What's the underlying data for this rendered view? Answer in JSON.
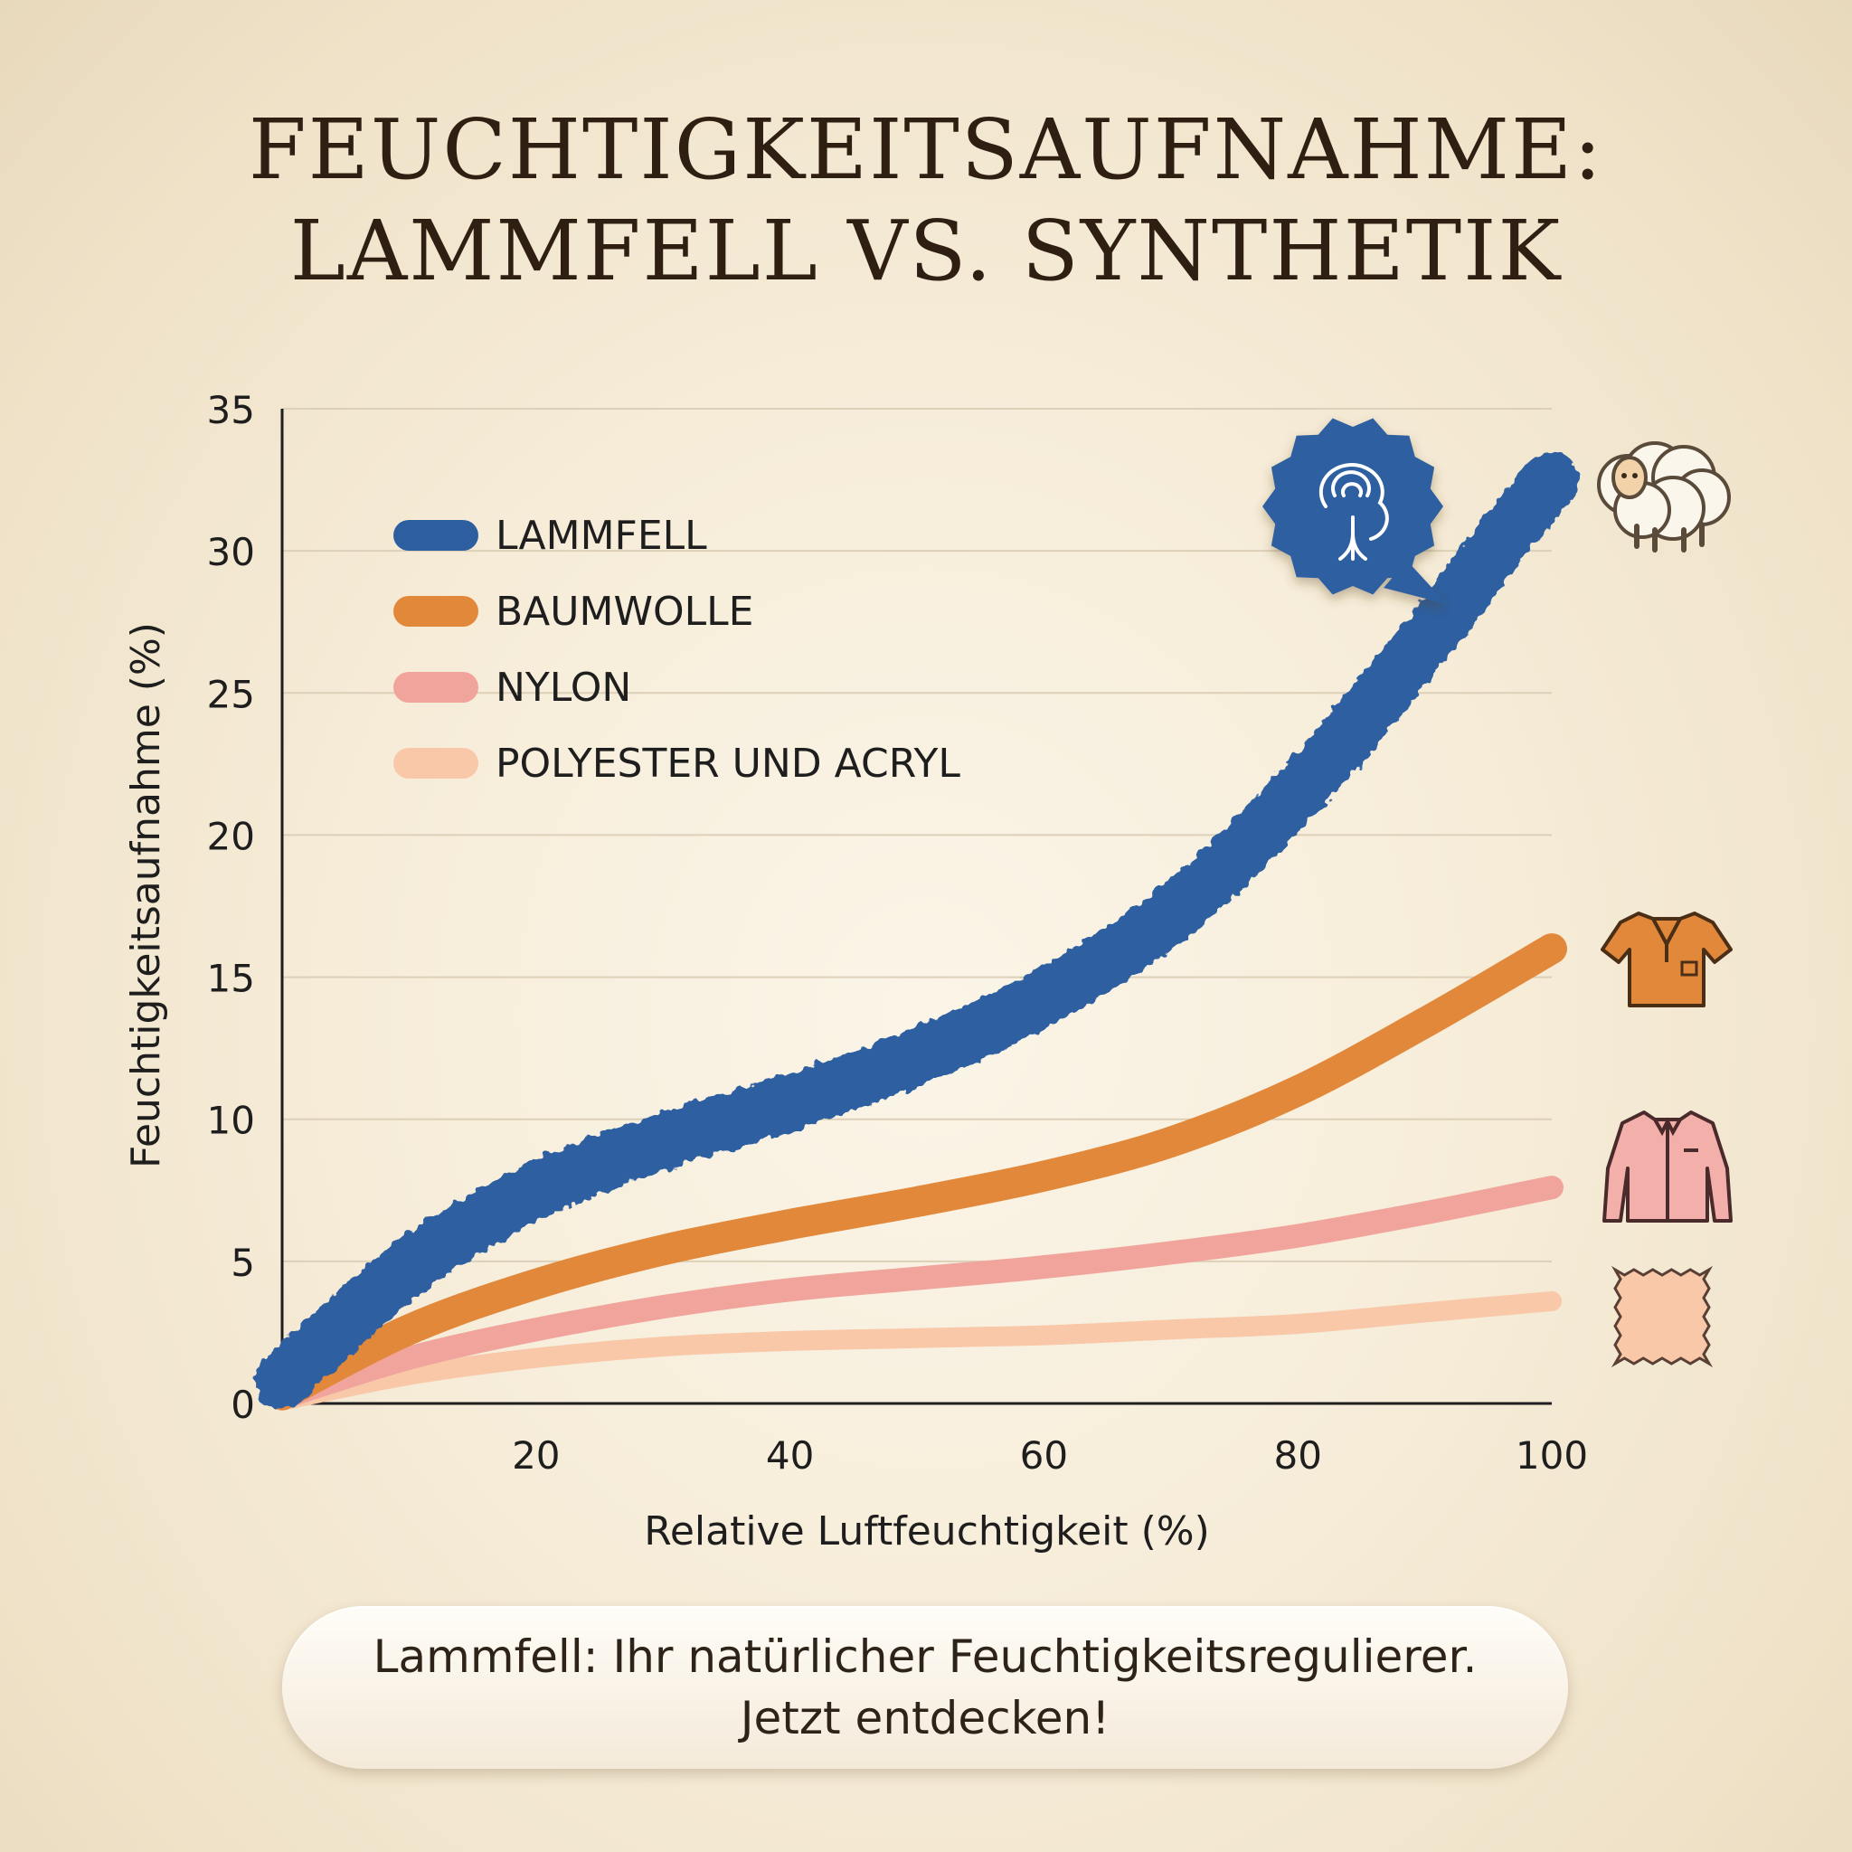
{
  "title": {
    "line1": "FEUCHTIGKEITSAUFNAHME:",
    "line2": "LAMMFELL VS. SYNTHETIK"
  },
  "cta": {
    "line1": "Lammfell: Ihr natürlicher Feuchtigkeitsregulierer.",
    "line2": "Jetzt entdecken!"
  },
  "chart_data": {
    "type": "line",
    "xlabel": "Relative Luftfeuchtigkeit (%)",
    "ylabel": "Feuchtigkeitsaufnahme (%)",
    "xlim": [
      0,
      100
    ],
    "ylim": [
      0,
      35
    ],
    "xticks": [
      20,
      40,
      60,
      80,
      100
    ],
    "yticks": [
      0,
      5,
      10,
      15,
      20,
      25,
      30,
      35
    ],
    "grid": true,
    "legend_position": "top-left",
    "series": [
      {
        "name": "LAMMFELL",
        "color": "#2d5fa0",
        "icon": "sheep-icon",
        "x": [
          0,
          10,
          20,
          30,
          40,
          50,
          60,
          70,
          80,
          90,
          95,
          100
        ],
        "y": [
          0.8,
          4.8,
          7.5,
          9.2,
          10.6,
          12.2,
          14.3,
          17.2,
          21.5,
          26.8,
          29.8,
          32.5
        ]
      },
      {
        "name": "BAUMWOLLE",
        "color": "#e2883a",
        "icon": "polo-shirt-icon",
        "x": [
          0,
          10,
          20,
          30,
          40,
          50,
          60,
          70,
          80,
          90,
          100
        ],
        "y": [
          0.3,
          2.6,
          4.2,
          5.4,
          6.3,
          7.1,
          8.0,
          9.2,
          11.0,
          13.4,
          16.0
        ]
      },
      {
        "name": "NYLON",
        "color": "#f0a49c",
        "icon": "jacket-icon",
        "x": [
          0,
          10,
          20,
          30,
          40,
          50,
          60,
          70,
          80,
          90,
          100
        ],
        "y": [
          0.2,
          1.6,
          2.6,
          3.4,
          4.0,
          4.4,
          4.8,
          5.3,
          5.9,
          6.7,
          7.6
        ]
      },
      {
        "name": "POLYESTER UND ACRYL",
        "color": "#f8c8a8",
        "icon": "fabric-swatch-icon",
        "x": [
          0,
          10,
          20,
          30,
          40,
          50,
          60,
          70,
          80,
          90,
          100
        ],
        "y": [
          0.1,
          1.0,
          1.6,
          2.0,
          2.2,
          2.3,
          2.4,
          2.6,
          2.8,
          3.2,
          3.6
        ]
      }
    ]
  },
  "badge": {
    "icon": "wool-tree-badge-icon",
    "color": "#2d5fa0"
  }
}
